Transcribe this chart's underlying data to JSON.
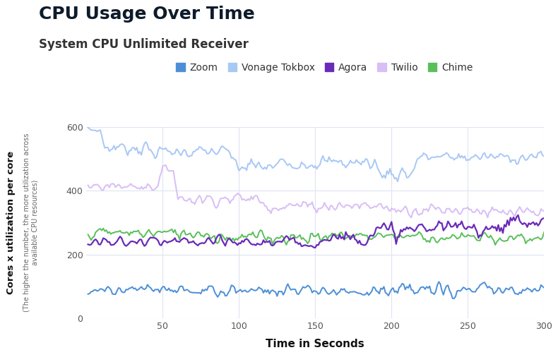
{
  "title": "CPU Usage Over Time",
  "subtitle": "System CPU Unlimited Receiver",
  "xlabel": "Time in Seconds",
  "ylabel_main": "Cores x utilization per core",
  "ylabel_sub": "(The higher the number, the more utilization across\navailable CPU resources)",
  "xlim": [
    0,
    300
  ],
  "ylim": [
    0,
    600
  ],
  "xticks": [
    50,
    100,
    150,
    200,
    250,
    300
  ],
  "yticks": [
    0,
    200,
    400,
    600
  ],
  "series": {
    "Zoom": {
      "color": "#4d8fd6",
      "segments": [
        {
          "x_start": 0,
          "x_end": 300,
          "level": 88,
          "noise": 15
        }
      ]
    },
    "Vonage Tokbox": {
      "color": "#a8c8f5",
      "segments": [
        {
          "x_start": 0,
          "x_end": 10,
          "level": 590,
          "noise": 8
        },
        {
          "x_start": 10,
          "x_end": 40,
          "level": 535,
          "noise": 18
        },
        {
          "x_start": 40,
          "x_end": 95,
          "level": 522,
          "noise": 15
        },
        {
          "x_start": 95,
          "x_end": 125,
          "level": 475,
          "noise": 22
        },
        {
          "x_start": 125,
          "x_end": 190,
          "level": 488,
          "noise": 18
        },
        {
          "x_start": 190,
          "x_end": 215,
          "level": 455,
          "noise": 25
        },
        {
          "x_start": 215,
          "x_end": 300,
          "level": 505,
          "noise": 15
        }
      ]
    },
    "Agora": {
      "color": "#6a2ab8",
      "segments": [
        {
          "x_start": 0,
          "x_end": 155,
          "level": 238,
          "noise": 14
        },
        {
          "x_start": 155,
          "x_end": 185,
          "level": 255,
          "noise": 18
        },
        {
          "x_start": 185,
          "x_end": 215,
          "level": 272,
          "noise": 20
        },
        {
          "x_start": 215,
          "x_end": 270,
          "level": 285,
          "noise": 20
        },
        {
          "x_start": 270,
          "x_end": 300,
          "level": 300,
          "noise": 20
        }
      ]
    },
    "Twilio": {
      "color": "#d8bef5",
      "segments": [
        {
          "x_start": 0,
          "x_end": 48,
          "level": 415,
          "noise": 12
        },
        {
          "x_start": 48,
          "x_end": 58,
          "level": 468,
          "noise": 8
        },
        {
          "x_start": 58,
          "x_end": 115,
          "level": 375,
          "noise": 16
        },
        {
          "x_start": 115,
          "x_end": 195,
          "level": 353,
          "noise": 15
        },
        {
          "x_start": 195,
          "x_end": 260,
          "level": 342,
          "noise": 16
        },
        {
          "x_start": 260,
          "x_end": 300,
          "level": 328,
          "noise": 16
        }
      ]
    },
    "Chime": {
      "color": "#5abf5a",
      "segments": [
        {
          "x_start": 0,
          "x_end": 80,
          "level": 268,
          "noise": 14
        },
        {
          "x_start": 80,
          "x_end": 160,
          "level": 255,
          "noise": 16
        },
        {
          "x_start": 160,
          "x_end": 220,
          "level": 260,
          "noise": 14
        },
        {
          "x_start": 220,
          "x_end": 300,
          "level": 252,
          "noise": 14
        }
      ]
    }
  },
  "legend_order": [
    "Zoom",
    "Vonage Tokbox",
    "Agora",
    "Twilio",
    "Chime"
  ],
  "bg_color": "#ffffff",
  "grid_color": "#dde4f0",
  "title_fontsize": 18,
  "subtitle_fontsize": 12,
  "tick_fontsize": 9,
  "legend_fontsize": 10
}
